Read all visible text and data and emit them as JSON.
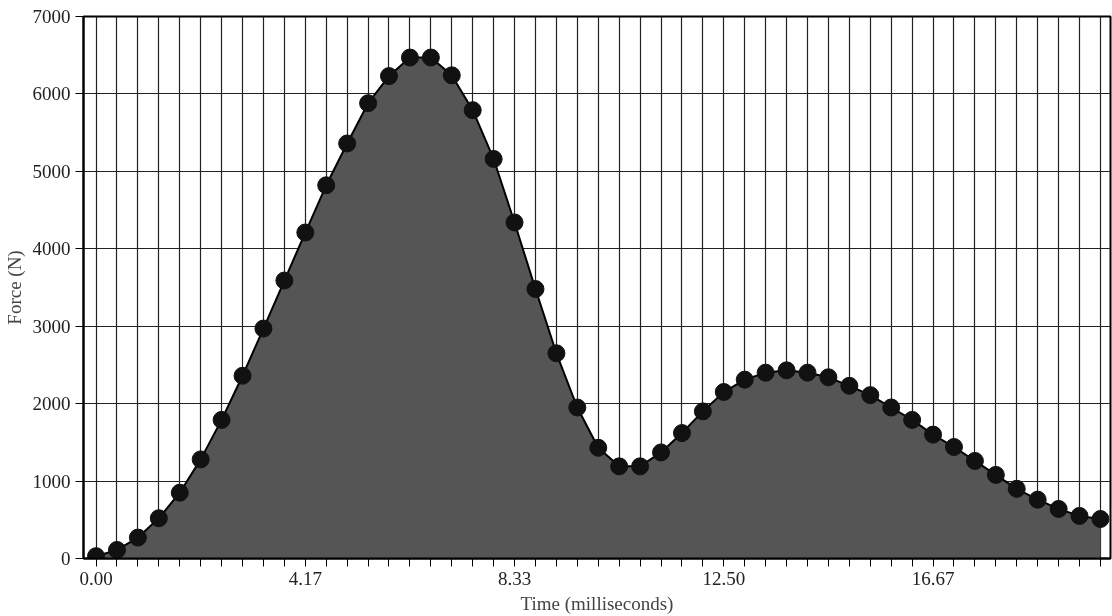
{
  "chart_data": {
    "type": "area",
    "xlabel": "Time (milliseconds)",
    "ylabel": "Force (N)",
    "x": [
      0,
      0.417,
      0.833,
      1.25,
      1.667,
      2.083,
      2.5,
      2.917,
      3.333,
      3.75,
      4.167,
      4.583,
      5,
      5.417,
      5.833,
      6.25,
      6.667,
      7.083,
      7.5,
      7.917,
      8.333,
      8.75,
      9.167,
      9.583,
      10,
      10.417,
      10.833,
      11.25,
      11.667,
      12.083,
      12.5,
      12.917,
      13.333,
      13.75,
      14.167,
      14.583,
      15,
      15.417,
      15.833,
      16.25,
      16.667,
      17.083,
      17.5,
      17.917,
      18.333,
      18.75,
      19.167,
      19.583,
      20
    ],
    "series": [
      {
        "color": "#555555",
        "values": [
          30,
          110,
          270,
          520,
          850,
          1280,
          1790,
          2360,
          2970,
          3590,
          4210,
          4820,
          5360,
          5880,
          6230,
          6470,
          6470,
          6240,
          5790,
          5160,
          4340,
          3480,
          2650,
          1950,
          1430,
          1190,
          1190,
          1370,
          1620,
          1900,
          2150,
          2310,
          2400,
          2430,
          2400,
          2340,
          2230,
          2110,
          1950,
          1790,
          1600,
          1440,
          1260,
          1080,
          900,
          760,
          640,
          550,
          510
        ]
      }
    ],
    "marker": "circle",
    "line_style": "solid",
    "grid": true,
    "xlim": [
      -0.25,
      20.2
    ],
    "ylim": [
      0,
      7000
    ],
    "xticks": [
      {
        "value": 0,
        "label": "0.00"
      },
      {
        "value": 0.417,
        "label": null
      },
      {
        "value": 0.833,
        "label": null
      },
      {
        "value": 1.25,
        "label": null
      },
      {
        "value": 1.667,
        "label": null
      },
      {
        "value": 2.083,
        "label": null
      },
      {
        "value": 2.5,
        "label": null
      },
      {
        "value": 2.917,
        "label": null
      },
      {
        "value": 3.333,
        "label": null
      },
      {
        "value": 3.75,
        "label": null
      },
      {
        "value": 4.167,
        "label": "4.17"
      },
      {
        "value": 4.583,
        "label": null
      },
      {
        "value": 5,
        "label": null
      },
      {
        "value": 5.417,
        "label": null
      },
      {
        "value": 5.833,
        "label": null
      },
      {
        "value": 6.25,
        "label": null
      },
      {
        "value": 6.667,
        "label": null
      },
      {
        "value": 7.083,
        "label": null
      },
      {
        "value": 7.5,
        "label": null
      },
      {
        "value": 7.917,
        "label": null
      },
      {
        "value": 8.333,
        "label": "8.33"
      },
      {
        "value": 8.75,
        "label": null
      },
      {
        "value": 9.167,
        "label": null
      },
      {
        "value": 9.583,
        "label": null
      },
      {
        "value": 10,
        "label": null
      },
      {
        "value": 10.417,
        "label": null
      },
      {
        "value": 10.833,
        "label": null
      },
      {
        "value": 11.25,
        "label": null
      },
      {
        "value": 11.667,
        "label": null
      },
      {
        "value": 12.083,
        "label": null
      },
      {
        "value": 12.5,
        "label": "12.50"
      },
      {
        "value": 12.917,
        "label": null
      },
      {
        "value": 13.333,
        "label": null
      },
      {
        "value": 13.75,
        "label": null
      },
      {
        "value": 14.167,
        "label": null
      },
      {
        "value": 14.583,
        "label": null
      },
      {
        "value": 15,
        "label": null
      },
      {
        "value": 15.417,
        "label": null
      },
      {
        "value": 15.833,
        "label": null
      },
      {
        "value": 16.25,
        "label": null
      },
      {
        "value": 16.667,
        "label": "16.67"
      },
      {
        "value": 17.083,
        "label": null
      },
      {
        "value": 17.5,
        "label": null
      },
      {
        "value": 17.917,
        "label": null
      },
      {
        "value": 18.333,
        "label": null
      },
      {
        "value": 18.75,
        "label": null
      },
      {
        "value": 19.167,
        "label": null
      },
      {
        "value": 19.583,
        "label": null
      },
      {
        "value": 20,
        "label": null
      }
    ],
    "yticks": [
      0,
      1000,
      2000,
      3000,
      4000,
      5000,
      6000,
      7000
    ]
  }
}
